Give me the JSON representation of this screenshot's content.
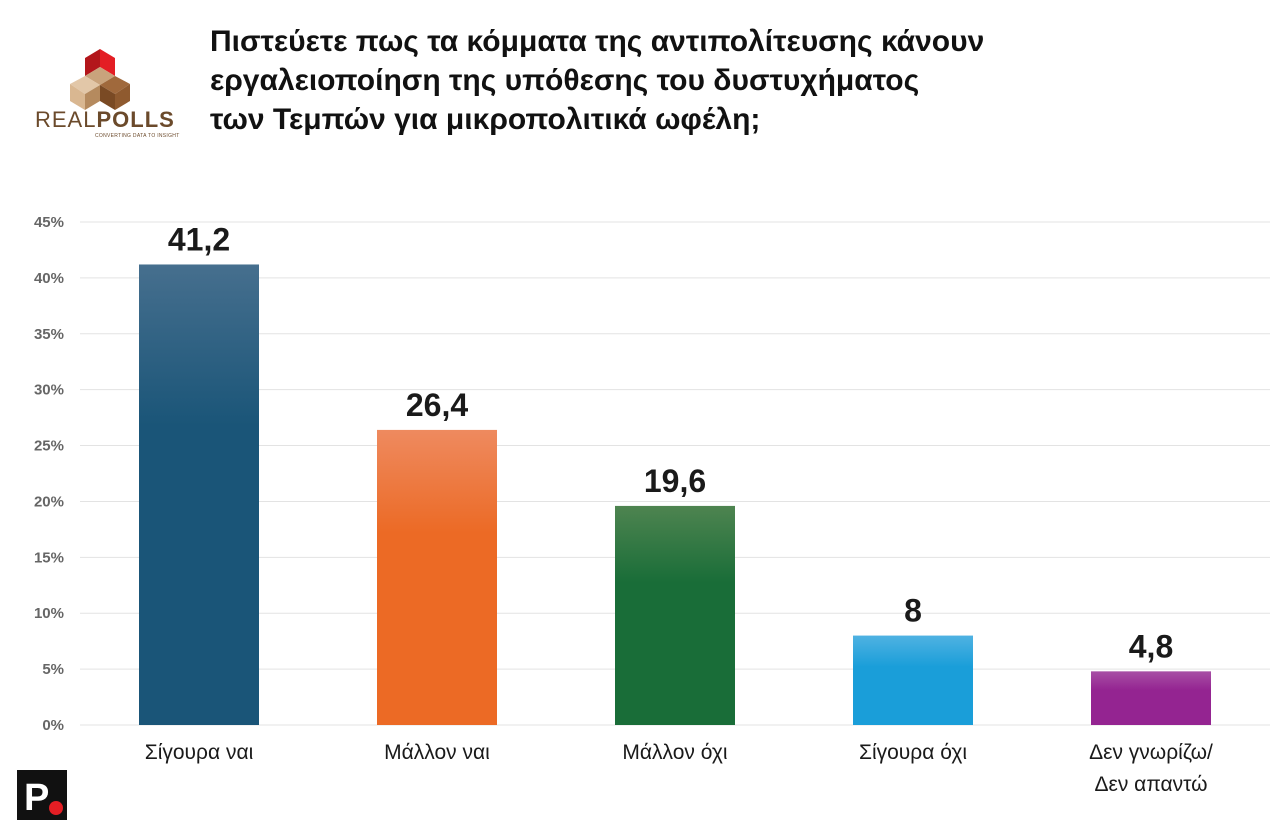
{
  "brand": {
    "logo_text_light": "REAL",
    "logo_text_bold": "POLLS",
    "logo_tagline": "CONVERTING DATA TO INSIGHT",
    "corner_logo_letter": "P"
  },
  "title_lines": [
    "Πιστεύετε πως τα κόμματα της αντιπολίτευσης κάνουν",
    "εργαλειοποίηση της υπόθεσης του δυστυχήματος",
    "των Τεμπών για μικροπολιτικά ωφέλη;"
  ],
  "chart_data": {
    "type": "bar",
    "categories": [
      [
        "Σίγουρα ναι"
      ],
      [
        "Μάλλον ναι"
      ],
      [
        "Μάλλον όχι"
      ],
      [
        "Σίγουρα όχι"
      ],
      [
        "Δεν γνωρίζω/",
        "Δεν απαντώ"
      ]
    ],
    "values": [
      41.2,
      26.4,
      19.6,
      8,
      4.8
    ],
    "value_labels": [
      "41,2",
      "26,4",
      "19,6",
      "8",
      "4,8"
    ],
    "ylim": [
      0,
      45
    ],
    "y_ticks": [
      0,
      5,
      10,
      15,
      20,
      25,
      30,
      35,
      40,
      45
    ],
    "y_tick_labels": [
      "0%",
      "5%",
      "10%",
      "15%",
      "20%",
      "25%",
      "30%",
      "35%",
      "40%",
      "45%"
    ],
    "grid": true,
    "legend": "none",
    "colors": [
      [
        "#466f8e",
        "#1a5578"
      ],
      [
        "#ee8a5f",
        "#ec6a25"
      ],
      [
        "#4e8450",
        "#196d38"
      ],
      [
        "#4fb2e2",
        "#1a9ed9"
      ],
      [
        "#a74fa5",
        "#942491"
      ]
    ],
    "grid_color": "#e3e3e3",
    "tick_color": "#666666",
    "label_color": "#1a1a1a"
  },
  "colors": {
    "brand_red": "#e31e24",
    "brand_brown": "#6b4a2b"
  }
}
